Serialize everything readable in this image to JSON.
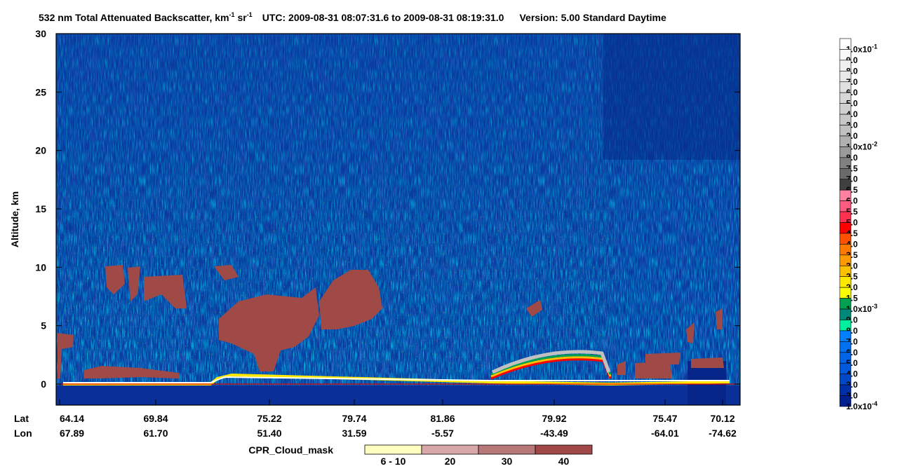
{
  "header": {
    "title": [
      "532 nm Total Attenuated Backscatter, km",
      "-1",
      " sr",
      "-1"
    ],
    "utc": "UTC:  2009-08-31 08:07:31.6  to  2009-08-31 08:19:31.0",
    "version": "Version: 5.00  Standard  Daytime"
  },
  "plot": {
    "ylabel": "Altitude, km",
    "ylim": [
      -1.8,
      30
    ],
    "yticks": [
      0,
      5,
      10,
      15,
      20,
      25,
      30
    ],
    "lat_label": "Lat",
    "lon_label": "Lon",
    "lat": [
      "64.14",
      "69.84",
      "75.22",
      "79.74",
      "81.86",
      "79.92",
      "75.47",
      "70.12"
    ],
    "lon": [
      "67.89",
      "61.70",
      "51.40",
      "31.59",
      "-5.57",
      "-43.49",
      "-64.01",
      "-74.62"
    ]
  },
  "colorbar": [
    {
      "label": "1.0x10",
      "exponent": "-1",
      "color": "#ffffff"
    },
    {
      "label": "9.0",
      "color": "#f8f8f8"
    },
    {
      "label": "8.0",
      "color": "#f0f0f0"
    },
    {
      "label": "7.0",
      "color": "#e8e8e8"
    },
    {
      "label": "6.0",
      "color": "#e0e0e0"
    },
    {
      "label": "5.0",
      "color": "#d8d8d8"
    },
    {
      "label": "4.0",
      "color": "#d0d0d0"
    },
    {
      "label": "3.0",
      "color": "#c8c8c8"
    },
    {
      "label": "2.0",
      "color": "#c0c0c0"
    },
    {
      "label": "1.0x10",
      "exponent": "-2",
      "color": "#b0b0b0"
    },
    {
      "label": "8.0",
      "color": "#9a9a9a"
    },
    {
      "label": "7.5",
      "color": "#808080"
    },
    {
      "label": "7.0",
      "color": "#6a6a6a"
    },
    {
      "label": "6.5",
      "color": "#404040"
    },
    {
      "label": "6.0",
      "color": "#ff80a0"
    },
    {
      "label": "5.5",
      "color": "#ff5a80"
    },
    {
      "label": "5.0",
      "color": "#ff3050"
    },
    {
      "label": "4.5",
      "color": "#ff0000"
    },
    {
      "label": "4.0",
      "color": "#ff5000"
    },
    {
      "label": "3.5",
      "color": "#ff7800"
    },
    {
      "label": "3.0",
      "color": "#ff9a00"
    },
    {
      "label": "2.5",
      "color": "#ffc000"
    },
    {
      "label": "2.0",
      "color": "#ffe800"
    },
    {
      "label": "1.5",
      "color": "#ffff00"
    },
    {
      "label": "1.0x10",
      "exponent": "-3",
      "color": "#00a050"
    },
    {
      "label": "9.0",
      "color": "#008878"
    },
    {
      "label": "8.0",
      "color": "#00f0a0"
    },
    {
      "label": "7.0",
      "color": "#0080ff"
    },
    {
      "label": "6.0",
      "color": "#0070f0"
    },
    {
      "label": "5.0",
      "color": "#0064e6"
    },
    {
      "label": "4.0",
      "color": "#0058dc"
    },
    {
      "label": "3.0",
      "color": "#0048c8"
    },
    {
      "label": "2.0",
      "color": "#0030a8"
    },
    {
      "label": "1.0x10",
      "exponent": "-4",
      "color": "#002090"
    }
  ],
  "cpr_legend": {
    "title": "CPR_Cloud_mask",
    "entries": [
      {
        "label": "6 - 10",
        "color": "#ffffc0"
      },
      {
        "label": "20",
        "color": "#d8a8a8"
      },
      {
        "label": "30",
        "color": "#b87878"
      },
      {
        "label": "40",
        "color": "#a04848"
      }
    ]
  }
}
